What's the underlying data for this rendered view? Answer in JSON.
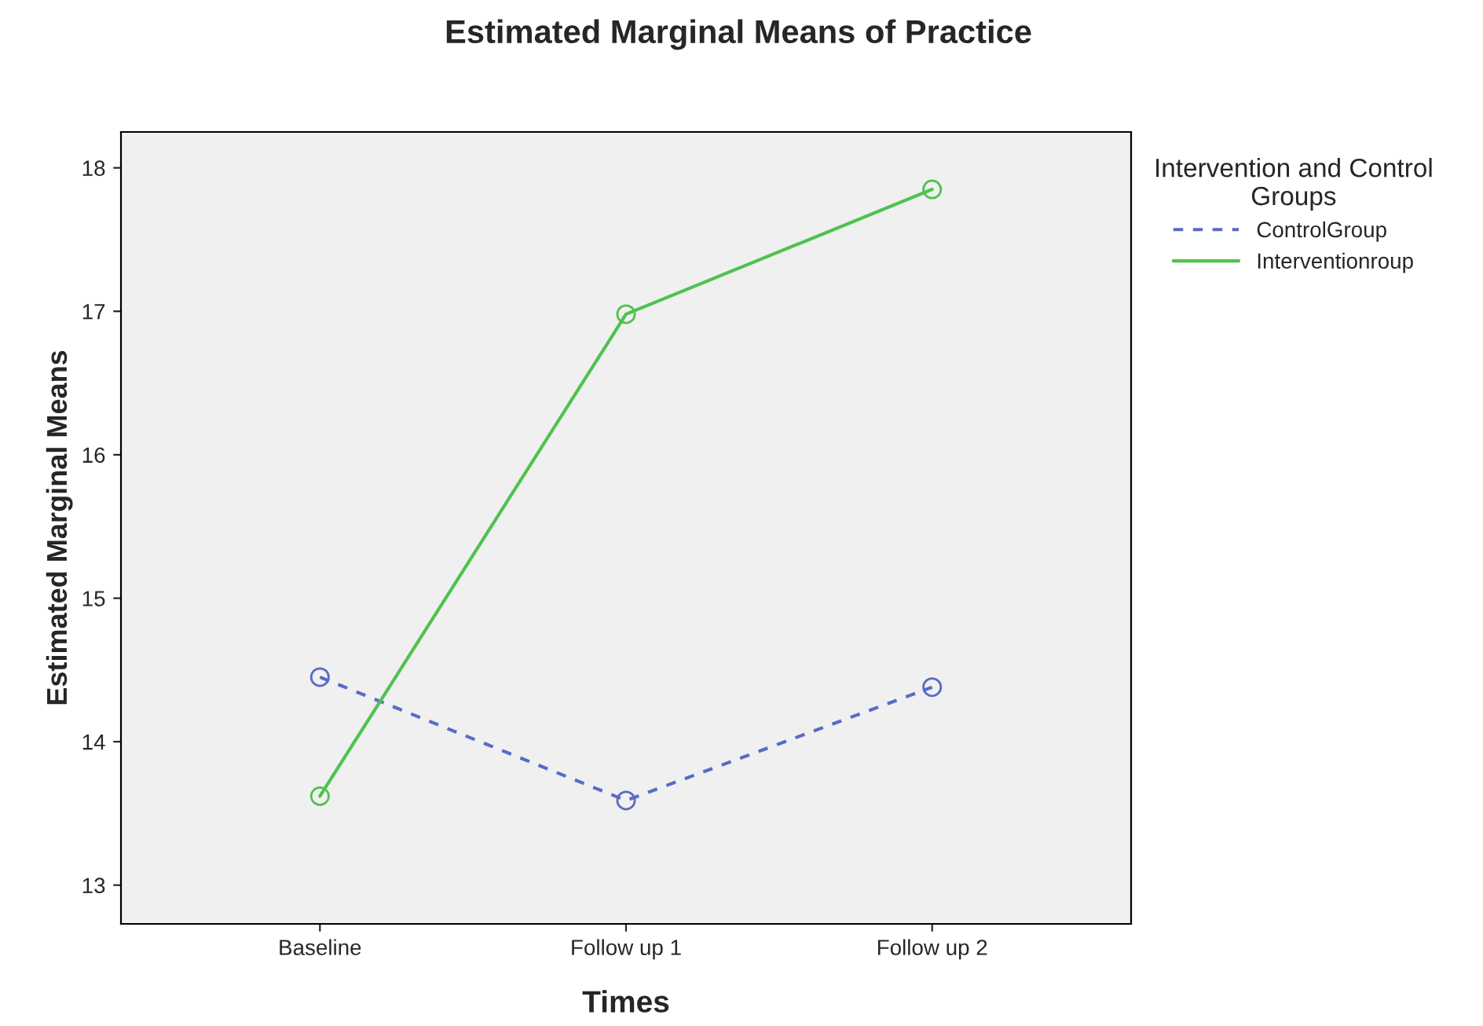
{
  "chart_data": {
    "type": "line",
    "title": "Estimated Marginal Means of Practice",
    "xlabel": "Times",
    "ylabel": "Estimated Marginal Means",
    "legend_title": "Intervention and Control\nGroups",
    "categories": [
      "Baseline",
      "Follow up 1",
      "Follow up 2"
    ],
    "series": [
      {
        "name": "ControlGroup",
        "color": "#5a6bc4",
        "values": [
          14.45,
          13.59,
          14.38
        ],
        "line_style": "dashed"
      },
      {
        "name": "Interventionroup",
        "color": "#4fc24f",
        "values": [
          13.62,
          16.98,
          17.85
        ],
        "line_style": "solid"
      }
    ],
    "ylim": [
      12.73,
      18.25
    ],
    "yticks": [
      13,
      14,
      15,
      16,
      17,
      18
    ],
    "marker": "circle",
    "legend": "top right",
    "grid": false
  }
}
